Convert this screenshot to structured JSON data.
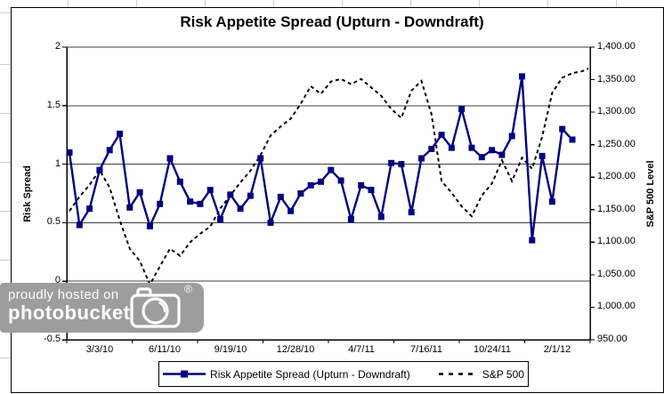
{
  "watermark": {
    "line1": "proudly hosted on",
    "line2": "photobucket",
    "registered": "®"
  },
  "chart_data": {
    "type": "line",
    "title": "Risk Appetite Spread (Upturn - Downdraft)",
    "x_tick_labels": [
      "3/3/10",
      "6/11/10",
      "9/19/10",
      "12/28/10",
      "4/7/11",
      "7/16/11",
      "10/24/11",
      "2/1/12"
    ],
    "left_axis": {
      "title": "Risk Spread",
      "min": -0.5,
      "max": 2,
      "ticks": [
        "2",
        "1.5",
        "1",
        "0.5",
        "0",
        "-0.5"
      ]
    },
    "right_axis": {
      "title": "S&P 500 Level",
      "min": 950,
      "max": 1400,
      "ticks": [
        "1,400.00",
        "1,350.00",
        "1,300.00",
        "1,250.00",
        "1,200.00",
        "1,150.00",
        "1,100.00",
        "1,050.00",
        "1,000.00",
        "950.00"
      ]
    },
    "grid": "horizontal-major",
    "legend_position": "bottom",
    "series": [
      {
        "name": "Risk Appetite Spread (Upturn - Downdraft)",
        "axis": "left",
        "color": "#000080",
        "style": "solid-square",
        "values": [
          1.1,
          0.48,
          0.62,
          0.95,
          1.12,
          1.26,
          0.63,
          0.76,
          0.47,
          0.66,
          1.05,
          0.85,
          0.68,
          0.66,
          0.78,
          0.53,
          0.74,
          0.62,
          0.73,
          1.05,
          0.5,
          0.72,
          0.6,
          0.75,
          0.82,
          0.85,
          0.95,
          0.86,
          0.53,
          0.82,
          0.78,
          0.55,
          1.01,
          1.0,
          0.59,
          1.05,
          1.13,
          1.25,
          1.14,
          1.47,
          1.14,
          1.06,
          1.12,
          1.08,
          1.24,
          1.75,
          0.35,
          1.07,
          0.68,
          1.3,
          1.21
        ]
      },
      {
        "name": "S&P 500",
        "axis": "right",
        "color": "#000000",
        "style": "dashed",
        "values": [
          1148,
          1170,
          1188,
          1211,
          1184,
          1134,
          1090,
          1071,
          1035,
          1063,
          1090,
          1079,
          1100,
          1113,
          1124,
          1152,
          1172,
          1192,
          1210,
          1234,
          1264,
          1278,
          1290,
          1313,
          1340,
          1328,
          1347,
          1351,
          1343,
          1351,
          1338,
          1325,
          1305,
          1291,
          1333,
          1348,
          1297,
          1194,
          1176,
          1155,
          1140,
          1172,
          1190,
          1226,
          1194,
          1230,
          1213,
          1262,
          1330,
          1353,
          1360,
          1363,
          1367
        ]
      }
    ]
  }
}
